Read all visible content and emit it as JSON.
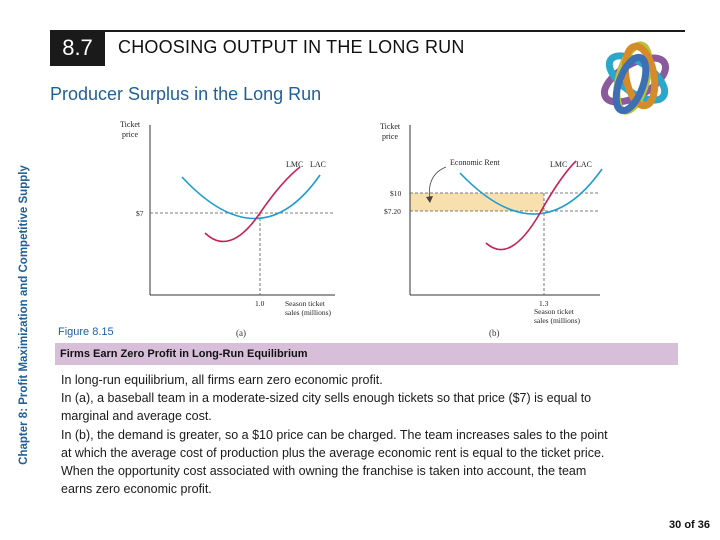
{
  "header": {
    "section_number": "8.7",
    "section_title": "CHOOSING OUTPUT IN THE LONG RUN",
    "subtitle": "Producer Surplus in the Long Run"
  },
  "sidebar": {
    "chapter_label": "Chapter 8:  Profit Maximization and Competitive Supply"
  },
  "figure": {
    "label": "Figure 8.15",
    "panel_a": {
      "tag": "(a)",
      "y_axis_label_line1": "Ticket",
      "y_axis_label_line2": "price",
      "x_axis_label_line1": "Season ticket",
      "x_axis_label_line2": "sales (millions)",
      "price_tick": "$7",
      "quantity_tick": "1.0",
      "curve_labels": [
        "LMC",
        "LAC"
      ]
    },
    "panel_b": {
      "tag": "(b)",
      "y_axis_label_line1": "Ticket",
      "y_axis_label_line2": "price",
      "x_axis_label_line1": "Season ticket",
      "x_axis_label_line2": "sales (millions)",
      "price_tick_high": "$10",
      "price_tick_low": "$7.20",
      "quantity_tick": "1.3",
      "annotation": "Economic Rent",
      "curve_labels": [
        "LMC",
        "LAC"
      ]
    },
    "colors": {
      "lac": "#1e9bd0",
      "lmc": "#c8215a",
      "rent_fill": "#f7dfae",
      "caption_bar": "#d7bfd9",
      "accent": "#1f5f9a"
    }
  },
  "caption": {
    "title": "Firms Earn Zero Profit in Long-Run Equilibrium",
    "lines": [
      "In long-run equilibrium, all firms earn zero economic profit.",
      "In (a), a baseball team in a moderate-sized city sells enough tickets so that price ($7) is equal to",
      "marginal and average cost.",
      "In (b), the demand is greater, so a $10 price can be charged. The team increases sales to the point",
      "at which the average cost of production plus the average economic rent is equal to the ticket price.",
      "When the opportunity cost associated with owning the franchise is taken into account, the team",
      "earns zero economic profit."
    ]
  },
  "footer": {
    "page": "30 of 36"
  }
}
